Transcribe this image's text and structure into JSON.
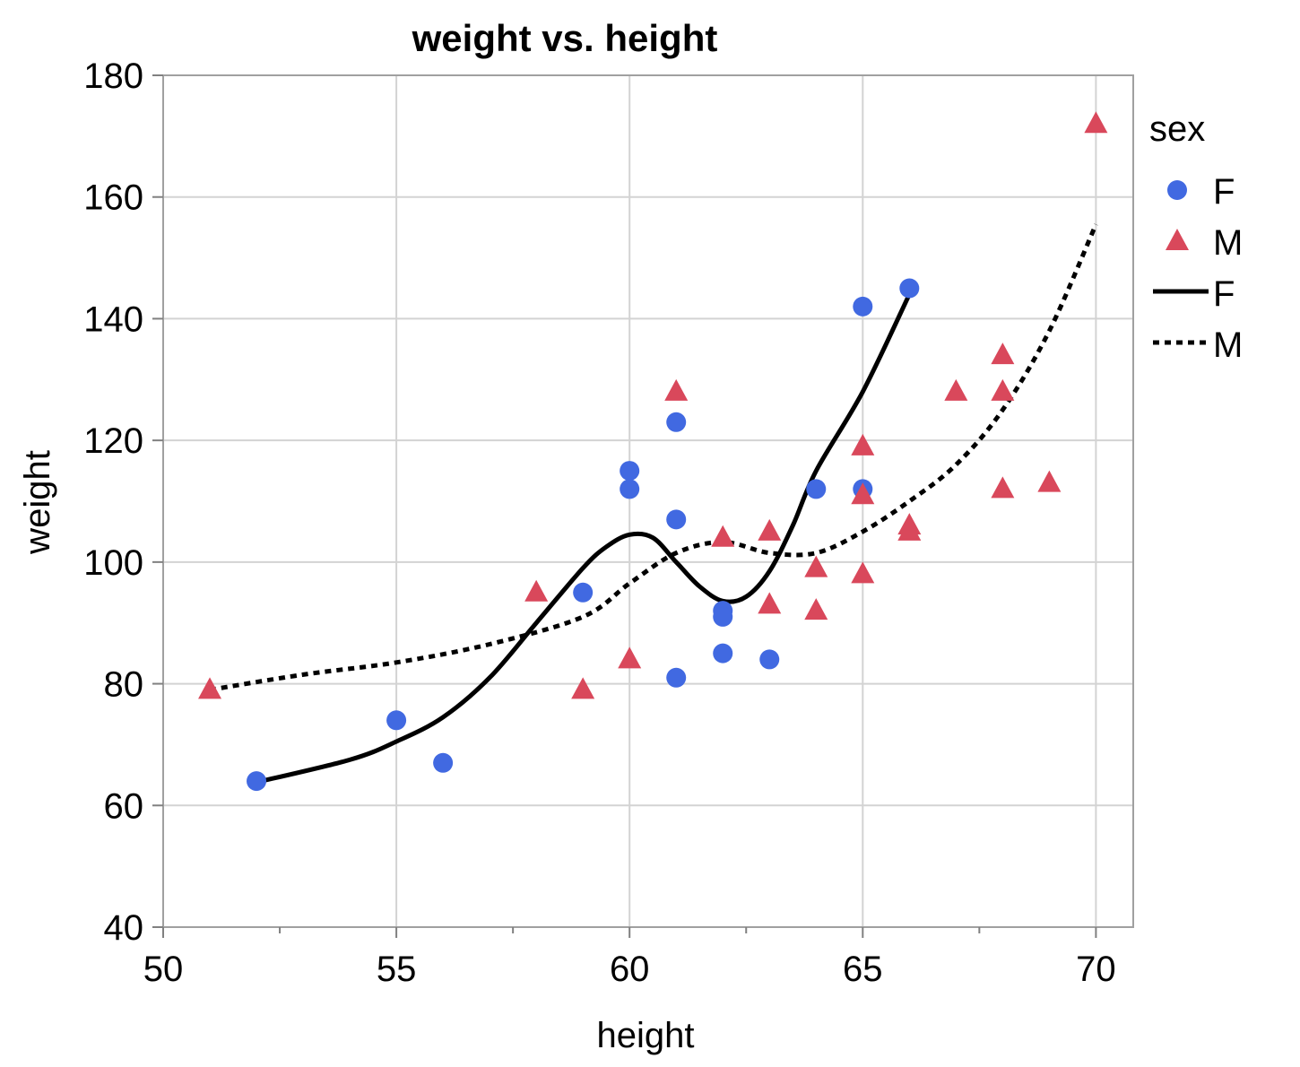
{
  "chart_data": {
    "type": "scatter",
    "title": "weight vs. height",
    "xlabel": "height",
    "ylabel": "weight",
    "xlim": [
      50,
      70.8
    ],
    "ylim": [
      40,
      180
    ],
    "xticks": [
      50,
      55,
      60,
      65,
      70
    ],
    "xminor": [
      52.5,
      57.5,
      62.5,
      67.5
    ],
    "yticks": [
      40,
      60,
      80,
      100,
      120,
      140,
      160,
      180
    ],
    "grid": true,
    "legend": {
      "title": "sex",
      "placement": "right",
      "entries": [
        {
          "label": "F",
          "kind": "marker",
          "shape": "circle",
          "color": "#4169e1"
        },
        {
          "label": "M",
          "kind": "marker",
          "shape": "triangle",
          "color": "#d9485b"
        },
        {
          "label": "F",
          "kind": "line",
          "style": "solid",
          "color": "#000000"
        },
        {
          "label": "M",
          "kind": "line",
          "style": "dotted",
          "color": "#000000"
        }
      ]
    },
    "series": [
      {
        "name": "F",
        "kind": "scatter",
        "marker": "circle",
        "color": "#4169e1",
        "points": [
          [
            52,
            64
          ],
          [
            55,
            74
          ],
          [
            56,
            67
          ],
          [
            59,
            95
          ],
          [
            60,
            115
          ],
          [
            60,
            112
          ],
          [
            61,
            123
          ],
          [
            61,
            107
          ],
          [
            61,
            81
          ],
          [
            62,
            92
          ],
          [
            62,
            91
          ],
          [
            62,
            85
          ],
          [
            63,
            84
          ],
          [
            64,
            112
          ],
          [
            65,
            142
          ],
          [
            65,
            112
          ],
          [
            66,
            145
          ]
        ]
      },
      {
        "name": "M",
        "kind": "scatter",
        "marker": "triangle",
        "color": "#d9485b",
        "points": [
          [
            51,
            79
          ],
          [
            58,
            95
          ],
          [
            59,
            79
          ],
          [
            60,
            84
          ],
          [
            61,
            128
          ],
          [
            62,
            104
          ],
          [
            63,
            105
          ],
          [
            63,
            93
          ],
          [
            64,
            99
          ],
          [
            64,
            92
          ],
          [
            65,
            119
          ],
          [
            65,
            111
          ],
          [
            65,
            98
          ],
          [
            66,
            106
          ],
          [
            66,
            105
          ],
          [
            67,
            128
          ],
          [
            68,
            134
          ],
          [
            68,
            128
          ],
          [
            68,
            112
          ],
          [
            69,
            113
          ],
          [
            70,
            172
          ]
        ]
      },
      {
        "name": "F",
        "kind": "line",
        "style": "solid",
        "color": "#000000",
        "points": [
          [
            52,
            63.8
          ],
          [
            54,
            67.5
          ],
          [
            55,
            70.5
          ],
          [
            56,
            74.5
          ],
          [
            57,
            81
          ],
          [
            58,
            90
          ],
          [
            59,
            99
          ],
          [
            59.5,
            102.5
          ],
          [
            60,
            104.5
          ],
          [
            60.5,
            104
          ],
          [
            61,
            100
          ],
          [
            61.5,
            96
          ],
          [
            62,
            93.6
          ],
          [
            62.5,
            94.3
          ],
          [
            63,
            98.5
          ],
          [
            63.5,
            106
          ],
          [
            64,
            115
          ],
          [
            65,
            128
          ],
          [
            66,
            144
          ]
        ]
      },
      {
        "name": "M",
        "kind": "line",
        "style": "dotted",
        "color": "#000000",
        "points": [
          [
            51,
            79
          ],
          [
            53,
            81.5
          ],
          [
            55,
            83.5
          ],
          [
            57,
            86.5
          ],
          [
            59,
            91
          ],
          [
            60,
            96.5
          ],
          [
            61,
            101.5
          ],
          [
            62,
            103.3
          ],
          [
            63,
            101.5
          ],
          [
            64,
            101.5
          ],
          [
            65,
            105
          ],
          [
            66,
            110
          ],
          [
            67,
            116
          ],
          [
            68,
            125
          ],
          [
            69,
            138
          ],
          [
            70,
            155.5
          ]
        ]
      }
    ]
  }
}
